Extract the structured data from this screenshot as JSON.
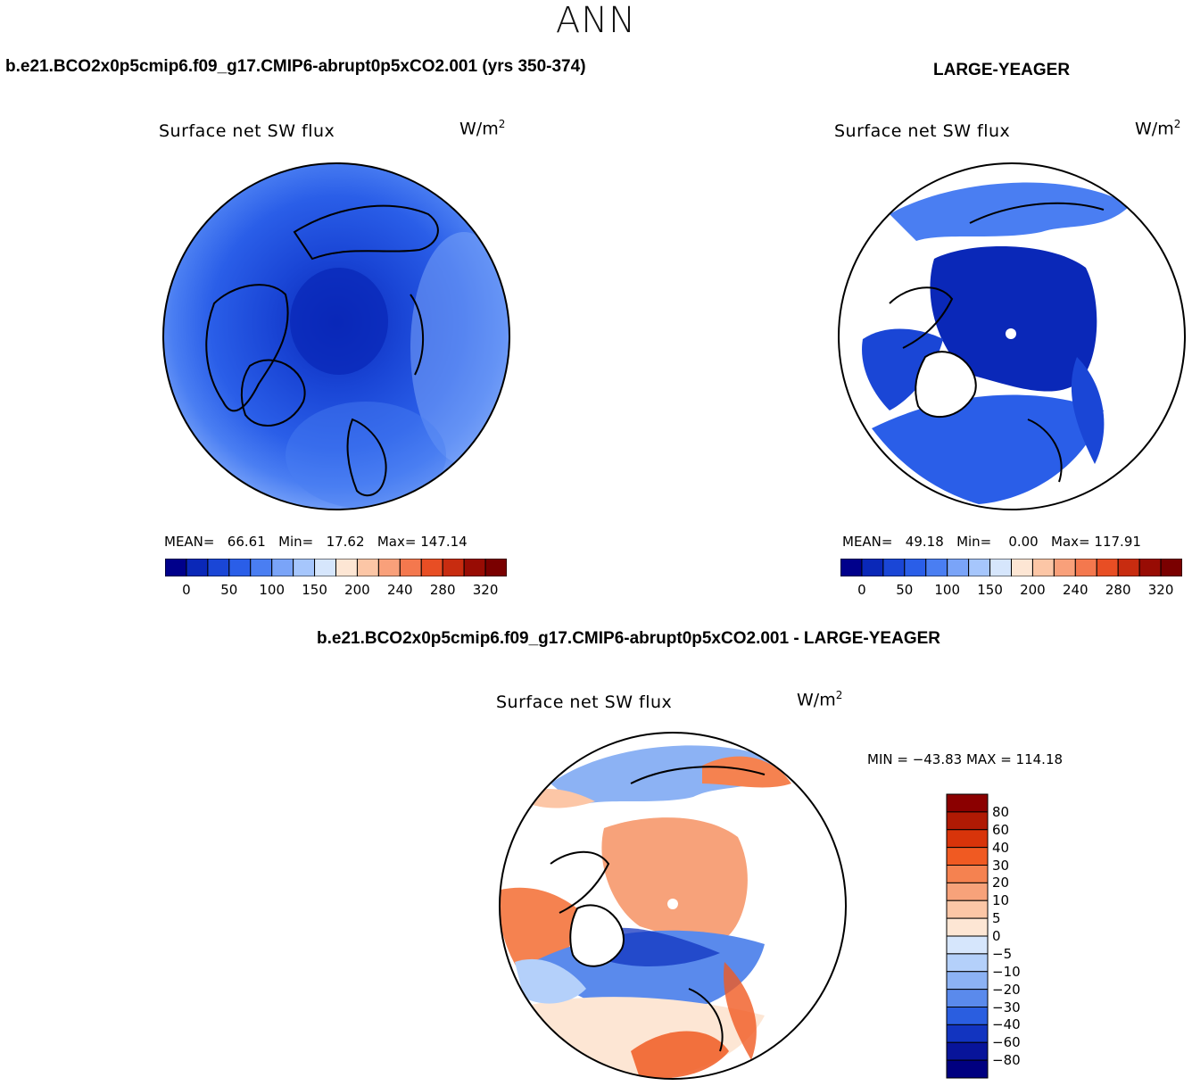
{
  "season": "ANN",
  "panels": [
    {
      "case_title": "b.e21.BCO2x0p5cmip6.f09_g17.CMIP6-abrupt0p5xCO2.001 (yrs 350-374)",
      "var_title": "Surface net SW flux",
      "units_base": "W/m",
      "units_exp": "2",
      "stats": {
        "mean_label": "MEAN=",
        "mean": "66.61",
        "min_label": "Min=",
        "min": "17.62",
        "max_label": "Max=",
        "max": "147.14"
      }
    },
    {
      "case_title": "LARGE-YEAGER",
      "var_title": "Surface net SW flux",
      "units_base": "W/m",
      "units_exp": "2",
      "stats": {
        "mean_label": "MEAN=",
        "mean": "49.18",
        "min_label": "Min=",
        "min": "0.00",
        "max_label": "Max=",
        "max": "117.91"
      }
    },
    {
      "case_title": "b.e21.BCO2x0p5cmip6.f09_g17.CMIP6-abrupt0p5xCO2.001 - LARGE-YEAGER",
      "var_title": "Surface net SW flux",
      "units_base": "W/m",
      "units_exp": "2",
      "minmax": "MIN = −43.83 MAX = 114.18"
    }
  ],
  "chart_data": [
    {
      "type": "heatmap",
      "projection": "north-polar-stereographic",
      "title": "Surface net SW flux",
      "units": "W/m2",
      "mean": 66.61,
      "min": 17.62,
      "max": 147.14,
      "colorbar_labels": [
        "0",
        "50",
        "100",
        "150",
        "200",
        "240",
        "280",
        "320"
      ],
      "colorbar_colors": [
        "#00008b",
        "#0a28b8",
        "#1a46d6",
        "#2a5ee8",
        "#4a7ef2",
        "#7aa4f8",
        "#a6c6fc",
        "#d6e6fc",
        "#fde6d4",
        "#fcc6a6",
        "#f9a07a",
        "#f4784e",
        "#e84e24",
        "#c82c10",
        "#980c04",
        "#7a0000"
      ]
    },
    {
      "type": "heatmap",
      "projection": "north-polar-stereographic",
      "title": "Surface net SW flux",
      "units": "W/m2",
      "mean": 49.18,
      "min": 0.0,
      "max": 117.91,
      "colorbar_labels": [
        "0",
        "50",
        "100",
        "150",
        "200",
        "240",
        "280",
        "320"
      ],
      "colorbar_colors": [
        "#00008b",
        "#0a28b8",
        "#1a46d6",
        "#2a5ee8",
        "#4a7ef2",
        "#7aa4f8",
        "#a6c6fc",
        "#d6e6fc",
        "#fde6d4",
        "#fcc6a6",
        "#f9a07a",
        "#f4784e",
        "#e84e24",
        "#c82c10",
        "#980c04",
        "#7a0000"
      ]
    },
    {
      "type": "heatmap",
      "projection": "north-polar-stereographic",
      "title": "Surface net SW flux",
      "units": "W/m2",
      "min": -43.83,
      "max": 114.18,
      "colorbar_labels": [
        "80",
        "60",
        "40",
        "30",
        "20",
        "10",
        "5",
        "0",
        "−5",
        "−10",
        "−20",
        "−30",
        "−40",
        "−60",
        "−80"
      ],
      "colorbar_colors": [
        "#8b0000",
        "#b01a04",
        "#d8340a",
        "#f05a22",
        "#f58250",
        "#f7a27a",
        "#fbc6a6",
        "#fde6d4",
        "#d6e6fc",
        "#b4d0fa",
        "#8cb2f4",
        "#5a8aec",
        "#2a5ee0",
        "#1234c0",
        "#08149a",
        "#000080"
      ]
    }
  ]
}
